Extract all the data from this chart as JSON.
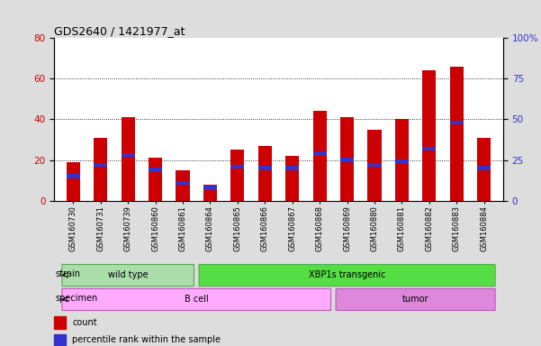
{
  "title": "GDS2640 / 1421977_at",
  "samples": [
    "GSM160730",
    "GSM160731",
    "GSM160739",
    "GSM160860",
    "GSM160861",
    "GSM160864",
    "GSM160865",
    "GSM160866",
    "GSM160867",
    "GSM160868",
    "GSM160869",
    "GSM160880",
    "GSM160881",
    "GSM160882",
    "GSM160883",
    "GSM160884"
  ],
  "counts": [
    19,
    31,
    41,
    21,
    15,
    8,
    25,
    27,
    22,
    44,
    41,
    35,
    40,
    64,
    66,
    31
  ],
  "percentiles": [
    15,
    22,
    28,
    19,
    11,
    8,
    21,
    20,
    20,
    29,
    25,
    22,
    24,
    32,
    48,
    20
  ],
  "left_yticks": [
    0,
    20,
    40,
    60,
    80
  ],
  "right_yticks": [
    0,
    25,
    50,
    75,
    100
  ],
  "left_ylim": [
    0,
    80
  ],
  "right_ylim": [
    0,
    100
  ],
  "bar_color": "#cc0000",
  "percentile_color": "#3333cc",
  "bg_color": "#dddddd",
  "plot_bg_color": "#ffffff",
  "grid_color": "#000000",
  "strain_label": "strain",
  "specimen_label": "specimen",
  "legend_count_label": "count",
  "legend_pct_label": "percentile rank within the sample",
  "bar_width": 0.5,
  "wt_color": "#aaddaa",
  "xbp_color": "#55dd44",
  "bcell_color": "#ffaaff",
  "tumor_color": "#dd88dd",
  "wt_edge": "#55aa55",
  "specimen_edge": "#bb55bb"
}
